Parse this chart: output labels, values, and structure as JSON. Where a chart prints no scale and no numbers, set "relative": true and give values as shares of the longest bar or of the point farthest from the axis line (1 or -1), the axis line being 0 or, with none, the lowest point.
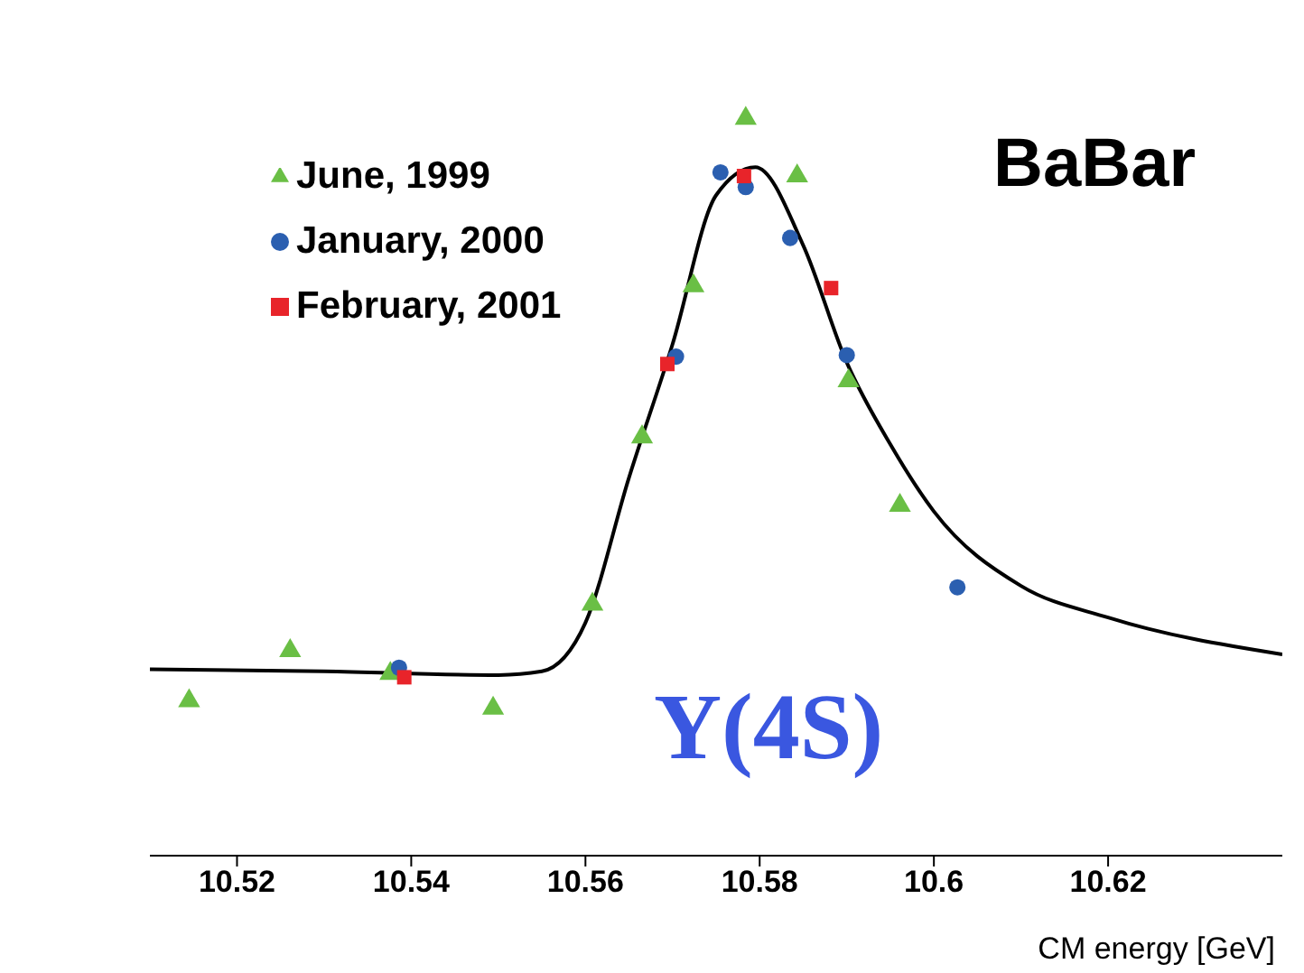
{
  "chart_data": {
    "type": "scatter",
    "xlabel": "CM energy [GeV]",
    "relative": true,
    "xlim": [
      10.51,
      10.64
    ],
    "xticks": [
      10.52,
      10.54,
      10.56,
      10.58,
      {
        "value": 10.6,
        "label": "10.6"
      },
      10.62
    ],
    "legend": "top left",
    "grid": false,
    "annotations": [
      "BaBar",
      "Υ(4S)"
    ],
    "series": [
      {
        "name": "June, 1999",
        "color": "#6abf45",
        "marker": "triangle",
        "x": [
          10.5145,
          10.5261,
          10.5376,
          10.5494,
          10.5608,
          10.5665,
          10.5724,
          10.5784,
          10.5843,
          10.5902,
          10.5961
        ],
        "values": [
          0.21,
          0.278,
          0.247,
          0.2,
          0.341,
          0.568,
          0.773,
          1.0,
          0.922,
          0.644,
          0.475
        ]
      },
      {
        "name": "January, 2000",
        "color": "#2b5fb0",
        "marker": "circle",
        "x": [
          10.5386,
          10.5704,
          10.5755,
          10.5784,
          10.5835,
          10.59,
          10.6027
        ],
        "values": [
          0.255,
          0.677,
          0.927,
          0.907,
          0.838,
          0.679,
          0.364
        ]
      },
      {
        "name": "February, 2001",
        "color": "#e8242a",
        "marker": "square",
        "x": [
          10.5392,
          10.5694,
          10.5782,
          10.5882
        ],
        "values": [
          0.242,
          0.667,
          0.922,
          0.77
        ]
      },
      {
        "type": "line",
        "color": "#000000",
        "marker": "none",
        "x": [
          10.51,
          10.53,
          10.55,
          10.555,
          10.56,
          10.565,
          10.57,
          10.575,
          10.5795,
          10.585,
          10.59,
          10.595,
          10.6,
          10.61,
          10.62,
          10.64
        ],
        "values": [
          0.253,
          0.25,
          0.245,
          0.25,
          0.316,
          0.513,
          0.694,
          0.896,
          0.934,
          0.828,
          0.669,
          0.558,
          0.467,
          0.366,
          0.323,
          0.273
        ]
      }
    ]
  }
}
